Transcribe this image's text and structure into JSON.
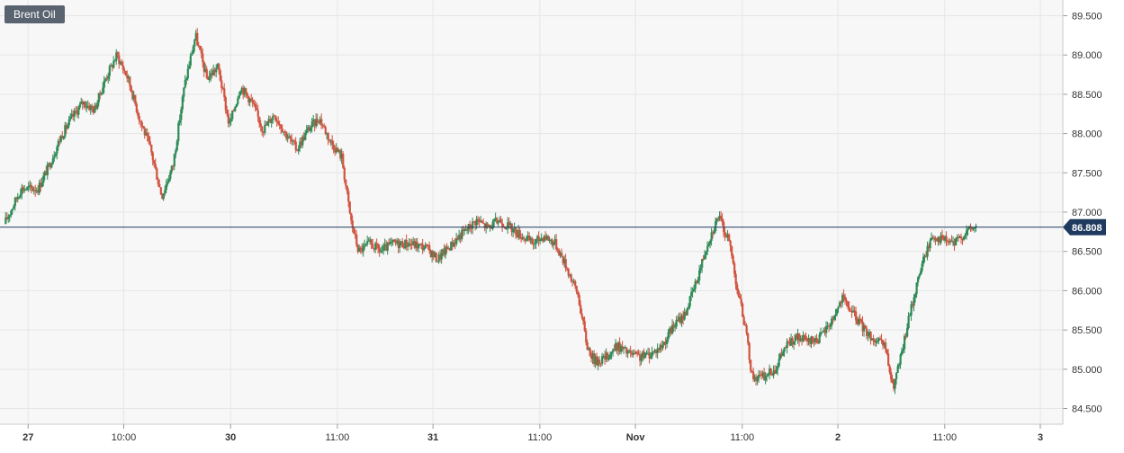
{
  "chart_data": {
    "type": "candlestick",
    "title": "Brent Oil",
    "colors": {
      "up": "#2e8a57",
      "down": "#d0533f",
      "price_line": "#1f3a5f",
      "current_price_bg": "#1f3a5f",
      "grid": "#e6e6e6",
      "plot_bg": "#f7f7f7",
      "axis_text": "#333333"
    },
    "ylim": [
      84.3,
      89.7
    ],
    "y_ticks": [
      "89.500",
      "89.000",
      "88.500",
      "88.000",
      "87.500",
      "87.000",
      "86.500",
      "86.000",
      "85.500",
      "85.000",
      "84.500"
    ],
    "x_ticks": [
      {
        "label": "27",
        "t": 2
      },
      {
        "label": "10:00",
        "t": 10.5
      },
      {
        "label": "30",
        "t": 20
      },
      {
        "label": "11:00",
        "t": 29.5
      },
      {
        "label": "31",
        "t": 38
      },
      {
        "label": "11:00",
        "t": 47.5
      },
      {
        "label": "Nov",
        "t": 56
      },
      {
        "label": "11:00",
        "t": 65.5
      },
      {
        "label": "2",
        "t": 74
      },
      {
        "label": "11:00",
        "t": 83.5
      },
      {
        "label": "3",
        "t": 92
      }
    ],
    "x_range": [
      -0.5,
      94
    ],
    "current_price": 86.808,
    "current_price_label": "86.808",
    "anchors": [
      [
        0,
        86.85
      ],
      [
        1.5,
        87.3
      ],
      [
        3,
        87.3
      ],
      [
        4,
        87.6
      ],
      [
        5,
        87.95
      ],
      [
        6,
        88.2
      ],
      [
        7,
        88.4
      ],
      [
        8,
        88.3
      ],
      [
        9,
        88.7
      ],
      [
        10,
        89.0
      ],
      [
        11,
        88.7
      ],
      [
        12,
        88.2
      ],
      [
        13,
        87.8
      ],
      [
        14,
        87.2
      ],
      [
        15,
        87.6
      ],
      [
        16,
        88.6
      ],
      [
        17,
        89.25
      ],
      [
        18,
        88.7
      ],
      [
        19,
        88.85
      ],
      [
        20,
        88.1
      ],
      [
        21,
        88.6
      ],
      [
        22,
        88.4
      ],
      [
        23,
        88.05
      ],
      [
        24,
        88.25
      ],
      [
        25,
        88.0
      ],
      [
        26,
        87.8
      ],
      [
        27,
        88.05
      ],
      [
        28,
        88.2
      ],
      [
        29,
        87.9
      ],
      [
        30,
        87.7
      ],
      [
        30.8,
        86.9
      ],
      [
        31.5,
        86.5
      ],
      [
        32.5,
        86.6
      ],
      [
        33.5,
        86.5
      ],
      [
        34.5,
        86.6
      ],
      [
        36,
        86.6
      ],
      [
        37.5,
        86.55
      ],
      [
        38.5,
        86.4
      ],
      [
        39.5,
        86.55
      ],
      [
        40.5,
        86.7
      ],
      [
        42,
        86.9
      ],
      [
        43,
        86.8
      ],
      [
        44,
        86.9
      ],
      [
        45,
        86.8
      ],
      [
        46,
        86.7
      ],
      [
        47,
        86.6
      ],
      [
        48,
        86.7
      ],
      [
        49,
        86.6
      ],
      [
        50,
        86.3
      ],
      [
        51,
        85.95
      ],
      [
        51.8,
        85.3
      ],
      [
        52.5,
        85.1
      ],
      [
        53.5,
        85.15
      ],
      [
        54.5,
        85.3
      ],
      [
        55.5,
        85.2
      ],
      [
        56.5,
        85.15
      ],
      [
        57.5,
        85.2
      ],
      [
        58.5,
        85.3
      ],
      [
        59.5,
        85.55
      ],
      [
        60.5,
        85.7
      ],
      [
        61.5,
        86.1
      ],
      [
        62.5,
        86.6
      ],
      [
        63.5,
        86.95
      ],
      [
        64.5,
        86.6
      ],
      [
        65.2,
        86.0
      ],
      [
        65.8,
        85.6
      ],
      [
        66.5,
        84.9
      ],
      [
        67.5,
        84.9
      ],
      [
        68.5,
        85.0
      ],
      [
        69.5,
        85.3
      ],
      [
        70.5,
        85.4
      ],
      [
        71.5,
        85.35
      ],
      [
        72.5,
        85.4
      ],
      [
        73.5,
        85.6
      ],
      [
        74.5,
        85.9
      ],
      [
        75.5,
        85.7
      ],
      [
        76.5,
        85.5
      ],
      [
        77.5,
        85.35
      ],
      [
        78.3,
        85.3
      ],
      [
        79.0,
        84.75
      ],
      [
        79.8,
        85.2
      ],
      [
        80.5,
        85.7
      ],
      [
        81.5,
        86.3
      ],
      [
        82.5,
        86.7
      ],
      [
        83.5,
        86.65
      ],
      [
        84.5,
        86.6
      ],
      [
        85.5,
        86.75
      ],
      [
        86.3,
        86.81
      ]
    ],
    "volatility": 0.12
  }
}
